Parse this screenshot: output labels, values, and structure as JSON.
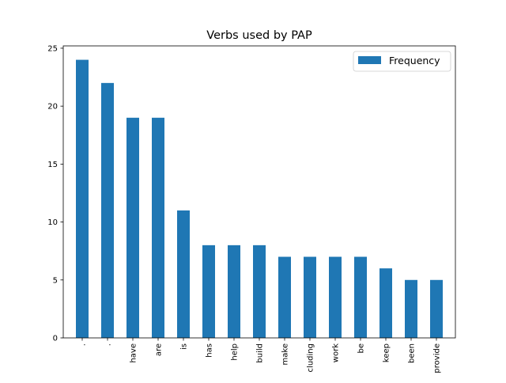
{
  "chart_data": {
    "type": "bar",
    "title": "Verbs used by PAP",
    "xlabel": "",
    "ylabel": "",
    "categories": [
      ".",
      ".",
      "have",
      "are",
      "is",
      "has",
      "help",
      "build",
      "make",
      "cluding",
      "work",
      "be",
      "keep",
      "been",
      "provide"
    ],
    "series": [
      {
        "name": "Frequency",
        "values": [
          24,
          22,
          19,
          19,
          11,
          8,
          8,
          8,
          7,
          7,
          7,
          7,
          6,
          5,
          5
        ],
        "color": "#1f77b4"
      }
    ],
    "ylim": [
      0,
      25.2
    ],
    "yticks": [
      0,
      5,
      10,
      15,
      20,
      25
    ],
    "legend": {
      "placement": "top-right"
    },
    "grid": false
  }
}
